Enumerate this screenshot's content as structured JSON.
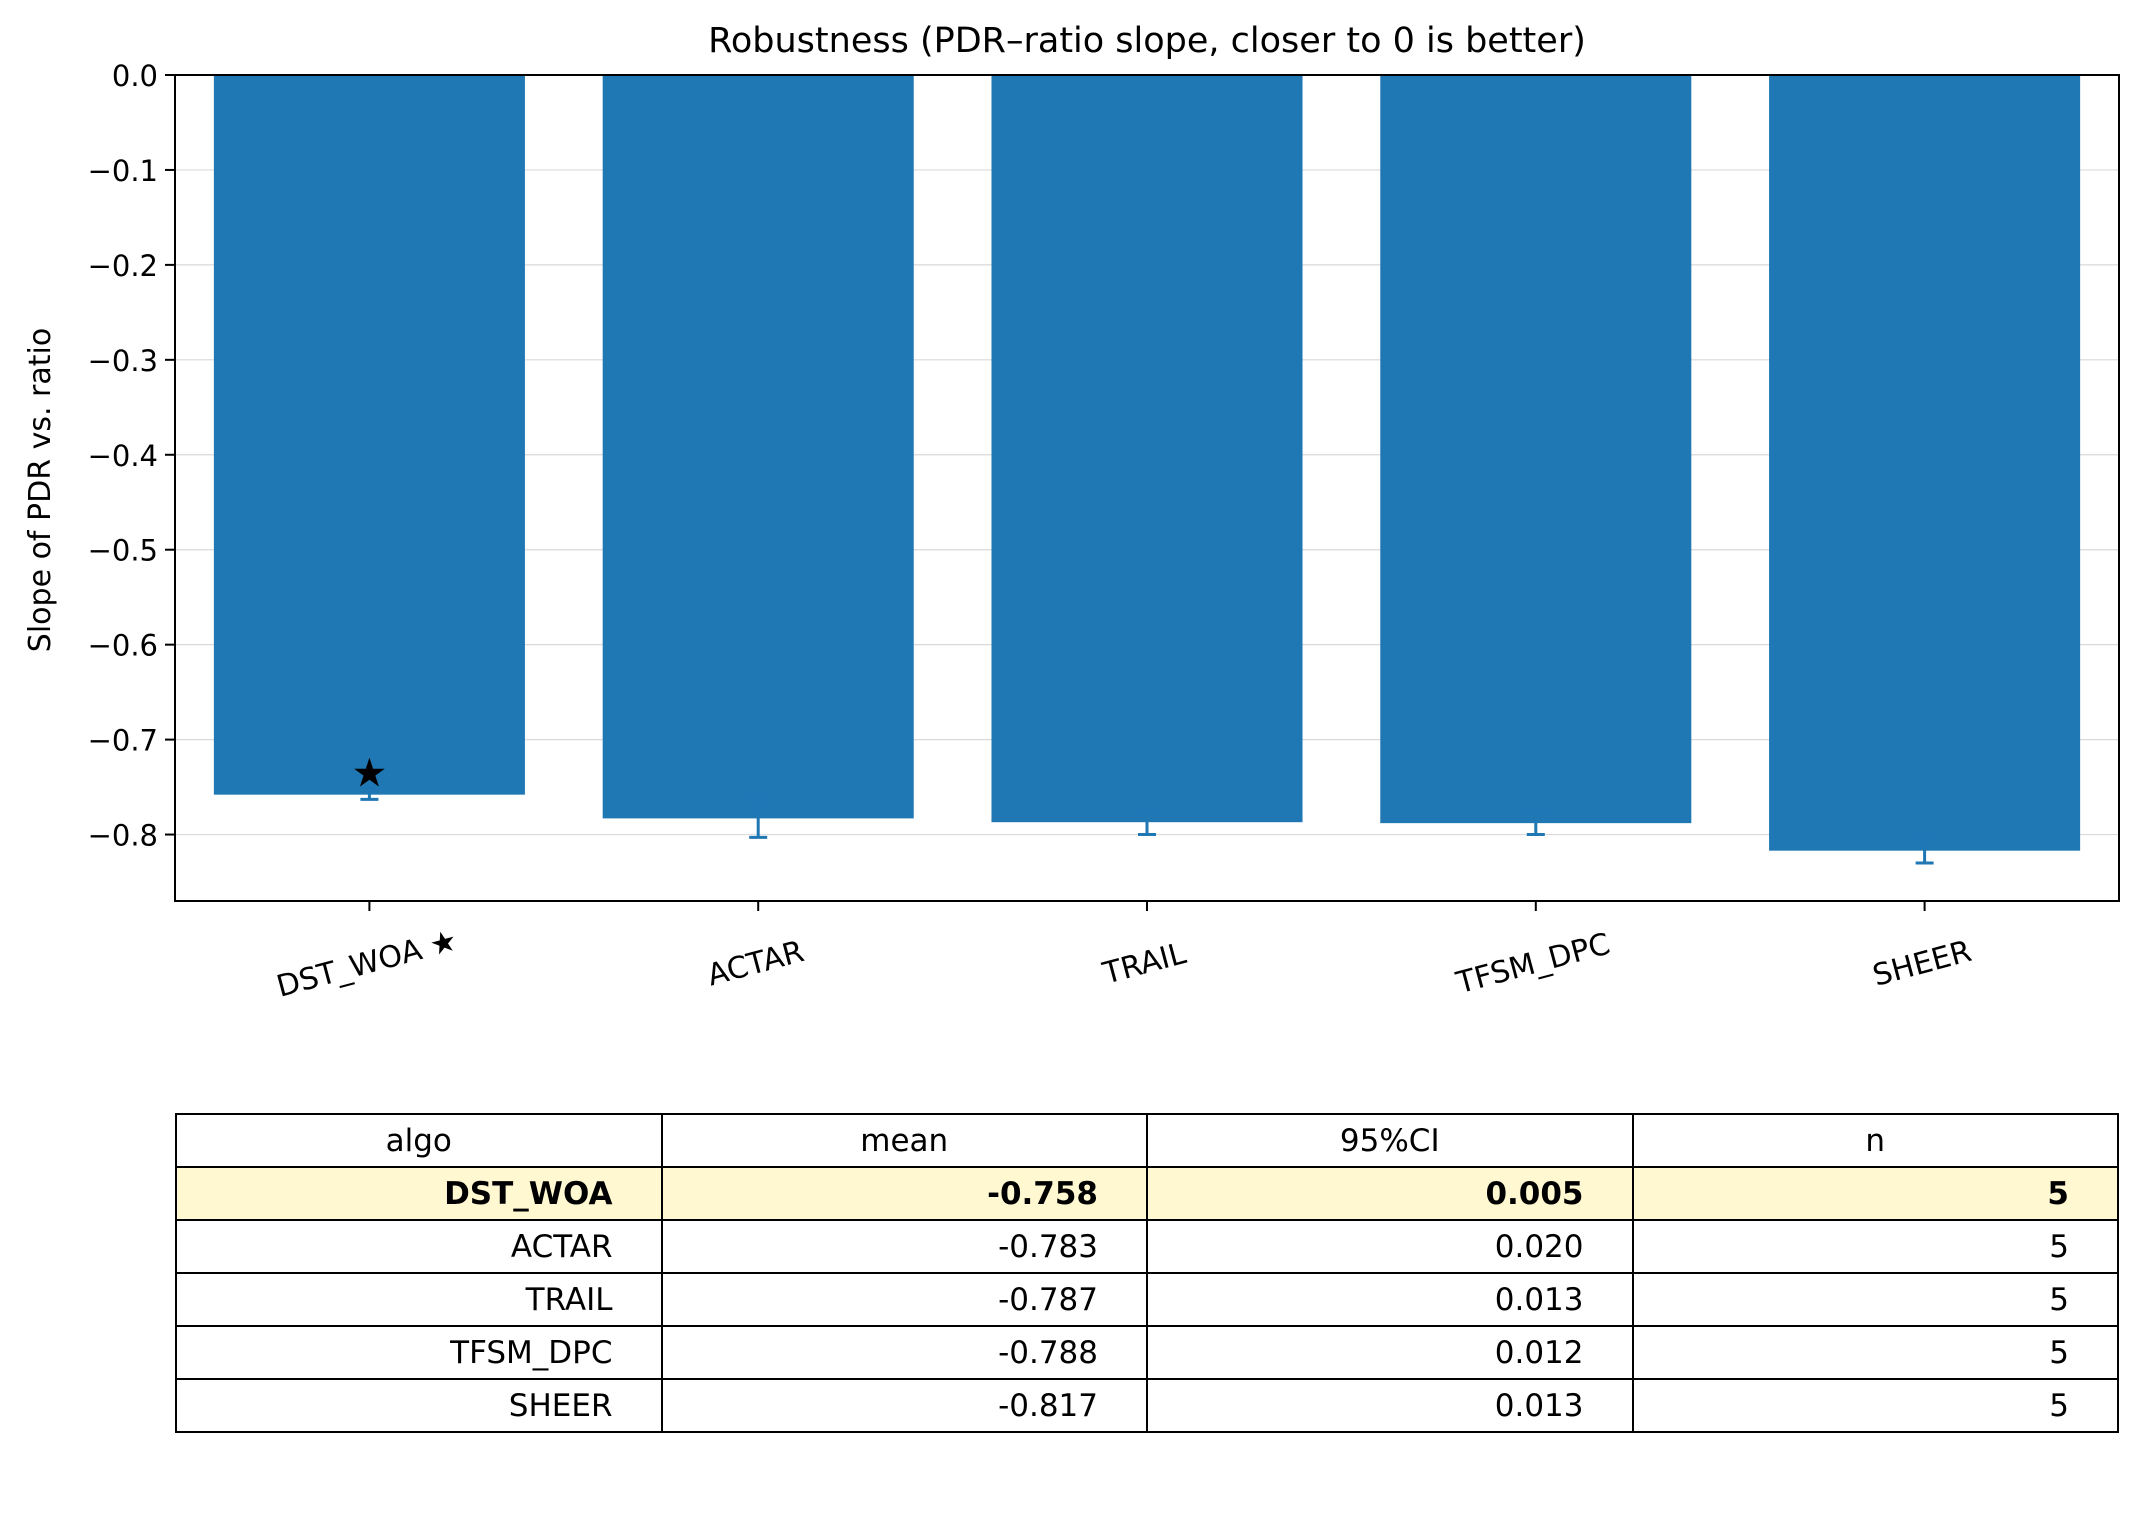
{
  "chart_data": {
    "type": "bar",
    "title": "Robustness (PDR–ratio slope, closer to 0 is better)",
    "xlabel": "",
    "ylabel": "Slope of PDR vs. ratio",
    "ylim": [
      -0.87,
      0.0
    ],
    "yticks": [
      0.0,
      -0.1,
      -0.2,
      -0.3,
      -0.4,
      -0.5,
      -0.6,
      -0.7,
      -0.8
    ],
    "ytick_labels": [
      "0.0",
      "−0.1",
      "−0.2",
      "−0.3",
      "−0.4",
      "−0.5",
      "−0.6",
      "−0.7",
      "−0.8"
    ],
    "categories": [
      "DST_WOA ★",
      "ACTAR",
      "TRAIL",
      "TFSM_DPC",
      "SHEER"
    ],
    "values": [
      -0.758,
      -0.783,
      -0.787,
      -0.788,
      -0.817
    ],
    "errors": [
      0.005,
      0.02,
      0.013,
      0.012,
      0.013
    ],
    "highlight_marker": "★",
    "highlight_index": 0,
    "grid": "y",
    "legend": "none",
    "bar_color": "#1f77b4",
    "error_color": "#1f77b4",
    "highlight_row_color": "#fff8d0"
  },
  "table": {
    "headers": [
      "algo",
      "mean",
      "95%CI",
      "n"
    ],
    "rows": [
      [
        "DST_WOA",
        "-0.758",
        "0.005",
        "5"
      ],
      [
        "ACTAR",
        "-0.783",
        "0.020",
        "5"
      ],
      [
        "TRAIL",
        "-0.787",
        "0.013",
        "5"
      ],
      [
        "TFSM_DPC",
        "-0.788",
        "0.012",
        "5"
      ],
      [
        "SHEER",
        "-0.817",
        "0.013",
        "5"
      ]
    ],
    "highlight_row": 0
  }
}
